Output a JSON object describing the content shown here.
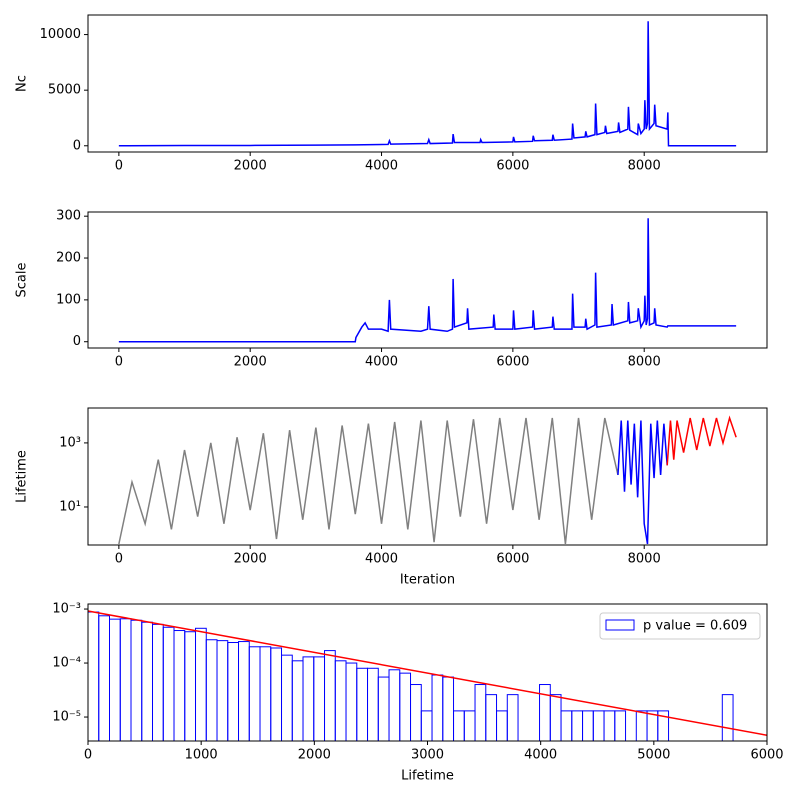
{
  "chart_data": [
    {
      "type": "line",
      "ylabel": "Nc",
      "color": "blue",
      "x": [
        0,
        1000,
        2000,
        3000,
        3600,
        4100,
        4120,
        4140,
        4700,
        4720,
        4740,
        5080,
        5090,
        5110,
        5500,
        5510,
        5530,
        6000,
        6010,
        6030,
        6300,
        6310,
        6330,
        6600,
        6610,
        6630,
        6900,
        6910,
        6930,
        7100,
        7110,
        7130,
        7250,
        7260,
        7280,
        7400,
        7410,
        7430,
        7600,
        7610,
        7630,
        7750,
        7760,
        7780,
        7900,
        7910,
        7950,
        8000,
        8010,
        8030,
        8050,
        8060,
        8080,
        8150,
        8160,
        8180,
        8350,
        8360,
        8370,
        9400
      ],
      "values": [
        0,
        20,
        30,
        60,
        80,
        120,
        450,
        150,
        200,
        550,
        200,
        250,
        1050,
        300,
        300,
        550,
        300,
        350,
        800,
        350,
        400,
        900,
        450,
        500,
        1000,
        500,
        600,
        2000,
        700,
        800,
        1300,
        800,
        1000,
        3800,
        1000,
        1200,
        1800,
        1100,
        1300,
        2100,
        1200,
        1500,
        3500,
        1400,
        1000,
        2000,
        1100,
        1500,
        4100,
        1500,
        2000,
        11200,
        1500,
        2000,
        3700,
        1800,
        1500,
        3000,
        0,
        0
      ],
      "xlim": [
        -470,
        9870
      ],
      "ylim": [
        -560,
        11760
      ],
      "xticks": [
        0,
        2000,
        4000,
        6000,
        8000
      ],
      "yticks": [
        0,
        5000,
        10000
      ]
    },
    {
      "type": "line",
      "ylabel": "Scale",
      "color": "blue",
      "x": [
        0,
        3600,
        3610,
        3700,
        3750,
        3800,
        4000,
        4100,
        4120,
        4140,
        4600,
        4700,
        4720,
        4740,
        5000,
        5080,
        5090,
        5110,
        5300,
        5310,
        5330,
        5700,
        5710,
        5730,
        6000,
        6010,
        6030,
        6300,
        6310,
        6330,
        6600,
        6610,
        6630,
        6900,
        6910,
        6930,
        7100,
        7110,
        7130,
        7250,
        7260,
        7280,
        7500,
        7510,
        7530,
        7750,
        7760,
        7780,
        7900,
        7910,
        7950,
        8000,
        8010,
        8030,
        8050,
        8060,
        8080,
        8150,
        8160,
        8180,
        8350,
        8360,
        9400
      ],
      "values": [
        0,
        0,
        10,
        35,
        45,
        30,
        30,
        25,
        100,
        30,
        25,
        30,
        85,
        30,
        25,
        30,
        150,
        35,
        45,
        80,
        30,
        35,
        65,
        30,
        30,
        75,
        30,
        35,
        75,
        30,
        35,
        60,
        30,
        30,
        115,
        35,
        35,
        55,
        30,
        40,
        165,
        35,
        40,
        90,
        40,
        50,
        95,
        45,
        50,
        80,
        35,
        50,
        110,
        40,
        55,
        295,
        40,
        45,
        80,
        40,
        35,
        38,
        38
      ],
      "xlim": [
        -470,
        9870
      ],
      "ylim": [
        -15,
        310
      ],
      "xticks": [
        0,
        2000,
        4000,
        6000,
        8000
      ],
      "yticks": [
        0,
        100,
        200,
        300
      ]
    },
    {
      "type": "line",
      "ylabel": "Lifetime",
      "xlabel": "Iteration",
      "yscale": "log",
      "series": [
        {
          "color": "gray",
          "x": [
            0,
            200,
            400,
            600,
            800,
            1000,
            1200,
            1400,
            1600,
            1800,
            2000,
            2200,
            2400,
            2600,
            2800,
            3000,
            3200,
            3400,
            3600,
            3800,
            4000,
            4200,
            4400,
            4600,
            4800,
            5000,
            5200,
            5400,
            5600,
            5800,
            6000,
            6200,
            6400,
            6600,
            6800,
            7000,
            7200,
            7400,
            7600
          ],
          "values": [
            0.7,
            60,
            3,
            300,
            2,
            600,
            5,
            1000,
            3,
            1500,
            8,
            2000,
            1,
            2500,
            4,
            3000,
            2,
            3500,
            6,
            4000,
            3,
            4500,
            2,
            5000,
            0.8,
            5000,
            5,
            5500,
            3,
            6000,
            8,
            6000,
            4,
            6000,
            0.7,
            6000,
            4,
            6000,
            100
          ]
        },
        {
          "color": "blue",
          "x": [
            7600,
            7650,
            7700,
            7750,
            7800,
            7850,
            7900,
            7950,
            8000,
            8050,
            8100,
            8150,
            8200,
            8250,
            8300,
            8350
          ],
          "values": [
            100,
            5000,
            30,
            5000,
            50,
            4000,
            20,
            5000,
            3,
            0.7,
            4000,
            80,
            5000,
            100,
            4000,
            200
          ]
        },
        {
          "color": "red",
          "x": [
            8350,
            8400,
            8450,
            8500,
            8600,
            8700,
            8800,
            8900,
            9000,
            9100,
            9200,
            9300,
            9400
          ],
          "values": [
            200,
            5000,
            300,
            5000,
            500,
            6000,
            600,
            6000,
            800,
            6000,
            1000,
            6000,
            1500
          ]
        }
      ],
      "xlim": [
        -470,
        9870
      ],
      "ylim": [
        0.65,
        12300
      ],
      "xticks": [
        0,
        2000,
        4000,
        6000,
        8000
      ],
      "yticks": [
        {
          "value": 10,
          "label": "10¹"
        },
        {
          "value": 1000,
          "label": "10³"
        }
      ]
    },
    {
      "type": "histogram",
      "xlabel": "Lifetime",
      "yscale": "log",
      "name": "p value = 0.609",
      "color": "blue",
      "legend": "upper right",
      "bins": [
        0,
        95,
        190,
        285,
        380,
        475,
        570,
        665,
        760,
        855,
        950,
        1045,
        1140,
        1235,
        1330,
        1425,
        1520,
        1615,
        1710,
        1805,
        1900,
        1995,
        2090,
        2185,
        2280,
        2375,
        2470,
        2565,
        2660,
        2755,
        2850,
        2945,
        3040,
        3135,
        3230,
        3325,
        3420,
        3515,
        3610,
        3705,
        3800,
        3895,
        3990,
        4085,
        4180,
        4275,
        4370,
        4465,
        4560,
        4655,
        4750,
        4845,
        4940,
        5035,
        5130,
        5225,
        5320,
        5415,
        5510,
        5605,
        5700
      ],
      "values": [
        0.00088,
        0.00075,
        0.00065,
        0.00066,
        0.00062,
        0.00057,
        0.00052,
        0.00046,
        0.0004,
        0.00038,
        0.00044,
        0.00027,
        0.00026,
        0.00024,
        0.00025,
        0.0002,
        0.0002,
        0.00019,
        0.00014,
        0.00011,
        0.00013,
        0.00013,
        0.00017,
        0.00011,
        0.0001,
        8e-05,
        8e-05,
        5.5e-05,
        7.5e-05,
        6.5e-05,
        4e-05,
        1.3e-05,
        6e-05,
        5.5e-05,
        1.3e-05,
        1.3e-05,
        4e-05,
        2.6e-05,
        1.3e-05,
        2.6e-05,
        0,
        0,
        4e-05,
        2.6e-05,
        1.3e-05,
        1.3e-05,
        1.3e-05,
        1.3e-05,
        1.3e-05,
        1.3e-05,
        0,
        1.3e-05,
        1.3e-05,
        1.3e-05,
        0,
        0,
        0,
        0,
        0,
        2.6e-05
      ],
      "fit_line": {
        "color": "red",
        "x": [
          0,
          6000
        ],
        "values": [
          0.00092,
          4.6e-06
        ]
      },
      "xlim": [
        0,
        6000
      ],
      "ylim": [
        3.6e-06,
        0.00124
      ],
      "xticks": [
        0,
        1000,
        2000,
        3000,
        4000,
        5000,
        6000
      ],
      "yticks": [
        {
          "value": 1e-05,
          "label": "10⁻⁵"
        },
        {
          "value": 0.0001,
          "label": "10⁻⁴"
        },
        {
          "value": 0.001,
          "label": "10⁻³"
        }
      ]
    }
  ]
}
